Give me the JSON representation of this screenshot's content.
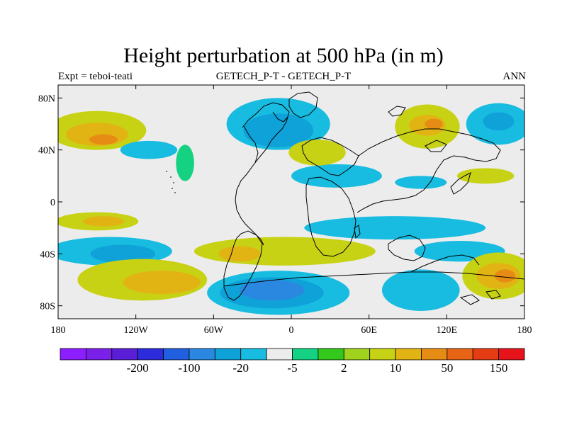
{
  "chart_data": {
    "type": "heatmap",
    "title": "Height perturbation at 500 hPa (in m)",
    "subtitle_left": "Expt = teboi-teati",
    "subtitle_center": "GETECH_P-T - GETECH_P-T",
    "subtitle_right": "ANN",
    "x_axis": {
      "range": [
        -180,
        180
      ],
      "ticks": [
        -180,
        -120,
        -60,
        0,
        60,
        120,
        180
      ],
      "tick_labels": [
        "180",
        "120W",
        "60W",
        "0",
        "60E",
        "120E",
        "180"
      ]
    },
    "y_axis": {
      "range": [
        -90,
        90
      ],
      "ticks": [
        80,
        40,
        0,
        -40,
        -80
      ],
      "tick_labels": [
        "80N",
        "40N",
        "0",
        "40S",
        "80S"
      ]
    },
    "colorbar": {
      "colors": [
        "#8c1eff",
        "#7a20e8",
        "#5a1ed6",
        "#2c2cdc",
        "#1f5fe0",
        "#2a88e0",
        "#0ea2d8",
        "#18bce0",
        "#ececec",
        "#14d282",
        "#34c81c",
        "#a0d21e",
        "#c8d214",
        "#e1b414",
        "#e68c14",
        "#e66414",
        "#e63c14",
        "#e6141a"
      ],
      "labels": [
        {
          "boundary": 3,
          "text": "-200"
        },
        {
          "boundary": 5,
          "text": "-100"
        },
        {
          "boundary": 7,
          "text": "-20"
        },
        {
          "boundary": 9,
          "text": "-5"
        },
        {
          "boundary": 11,
          "text": "2"
        },
        {
          "boundary": 13,
          "text": "10"
        },
        {
          "boundary": 15,
          "text": "50"
        },
        {
          "boundary": 17,
          "text": "150"
        }
      ]
    },
    "anomaly_regions": [
      {
        "lon": -150,
        "lat": 55,
        "rx": 38,
        "ry": 15,
        "level": 12
      },
      {
        "lon": -150,
        "lat": 52,
        "rx": 24,
        "ry": 9,
        "level": 13
      },
      {
        "lon": -145,
        "lat": 48,
        "rx": 11,
        "ry": 4,
        "level": 14
      },
      {
        "lon": -110,
        "lat": 40,
        "rx": 22,
        "ry": 7,
        "level": 7
      },
      {
        "lon": -82,
        "lat": 30,
        "rx": 7,
        "ry": 14,
        "level": 9
      },
      {
        "lon": -10,
        "lat": 60,
        "rx": 40,
        "ry": 20,
        "level": 7
      },
      {
        "lon": -10,
        "lat": 55,
        "rx": 27,
        "ry": 13,
        "level": 6
      },
      {
        "lon": 35,
        "lat": 20,
        "rx": 35,
        "ry": 9,
        "level": 7
      },
      {
        "lon": 20,
        "lat": 38,
        "rx": 22,
        "ry": 10,
        "level": 12
      },
      {
        "lon": 105,
        "lat": 58,
        "rx": 25,
        "ry": 17,
        "level": 12
      },
      {
        "lon": 105,
        "lat": 59,
        "rx": 14,
        "ry": 8,
        "level": 13
      },
      {
        "lon": 110,
        "lat": 60,
        "rx": 7,
        "ry": 4,
        "level": 14
      },
      {
        "lon": 160,
        "lat": 60,
        "rx": 25,
        "ry": 16,
        "level": 7
      },
      {
        "lon": 160,
        "lat": 62,
        "rx": 12,
        "ry": 7,
        "level": 6
      },
      {
        "lon": 150,
        "lat": 20,
        "rx": 22,
        "ry": 6,
        "level": 12
      },
      {
        "lon": 100,
        "lat": 15,
        "rx": 20,
        "ry": 5,
        "level": 7
      },
      {
        "lon": -150,
        "lat": -15,
        "rx": 32,
        "ry": 7,
        "level": 12
      },
      {
        "lon": -145,
        "lat": -15,
        "rx": 16,
        "ry": 4,
        "level": 13
      },
      {
        "lon": -140,
        "lat": -38,
        "rx": 48,
        "ry": 11,
        "level": 7
      },
      {
        "lon": -130,
        "lat": -40,
        "rx": 25,
        "ry": 7,
        "level": 6
      },
      {
        "lon": -115,
        "lat": -60,
        "rx": 50,
        "ry": 16,
        "level": 12
      },
      {
        "lon": -100,
        "lat": -62,
        "rx": 30,
        "ry": 9,
        "level": 13
      },
      {
        "lon": -5,
        "lat": -38,
        "rx": 70,
        "ry": 11,
        "level": 12
      },
      {
        "lon": -40,
        "lat": -40,
        "rx": 16,
        "ry": 6,
        "level": 13
      },
      {
        "lon": -10,
        "lat": -70,
        "rx": 55,
        "ry": 17,
        "level": 7
      },
      {
        "lon": -15,
        "lat": -70,
        "rx": 40,
        "ry": 12,
        "level": 6
      },
      {
        "lon": -15,
        "lat": -68,
        "rx": 25,
        "ry": 8,
        "level": 5
      },
      {
        "lon": 80,
        "lat": -20,
        "rx": 70,
        "ry": 9,
        "level": 7
      },
      {
        "lon": 130,
        "lat": -38,
        "rx": 35,
        "ry": 8,
        "level": 7
      },
      {
        "lon": 100,
        "lat": -68,
        "rx": 30,
        "ry": 16,
        "level": 7
      },
      {
        "lon": 160,
        "lat": -57,
        "rx": 28,
        "ry": 18,
        "level": 12
      },
      {
        "lon": 160,
        "lat": -57,
        "rx": 17,
        "ry": 10,
        "level": 13
      },
      {
        "lon": 165,
        "lat": -57,
        "rx": 8,
        "ry": 5,
        "level": 14
      }
    ]
  }
}
